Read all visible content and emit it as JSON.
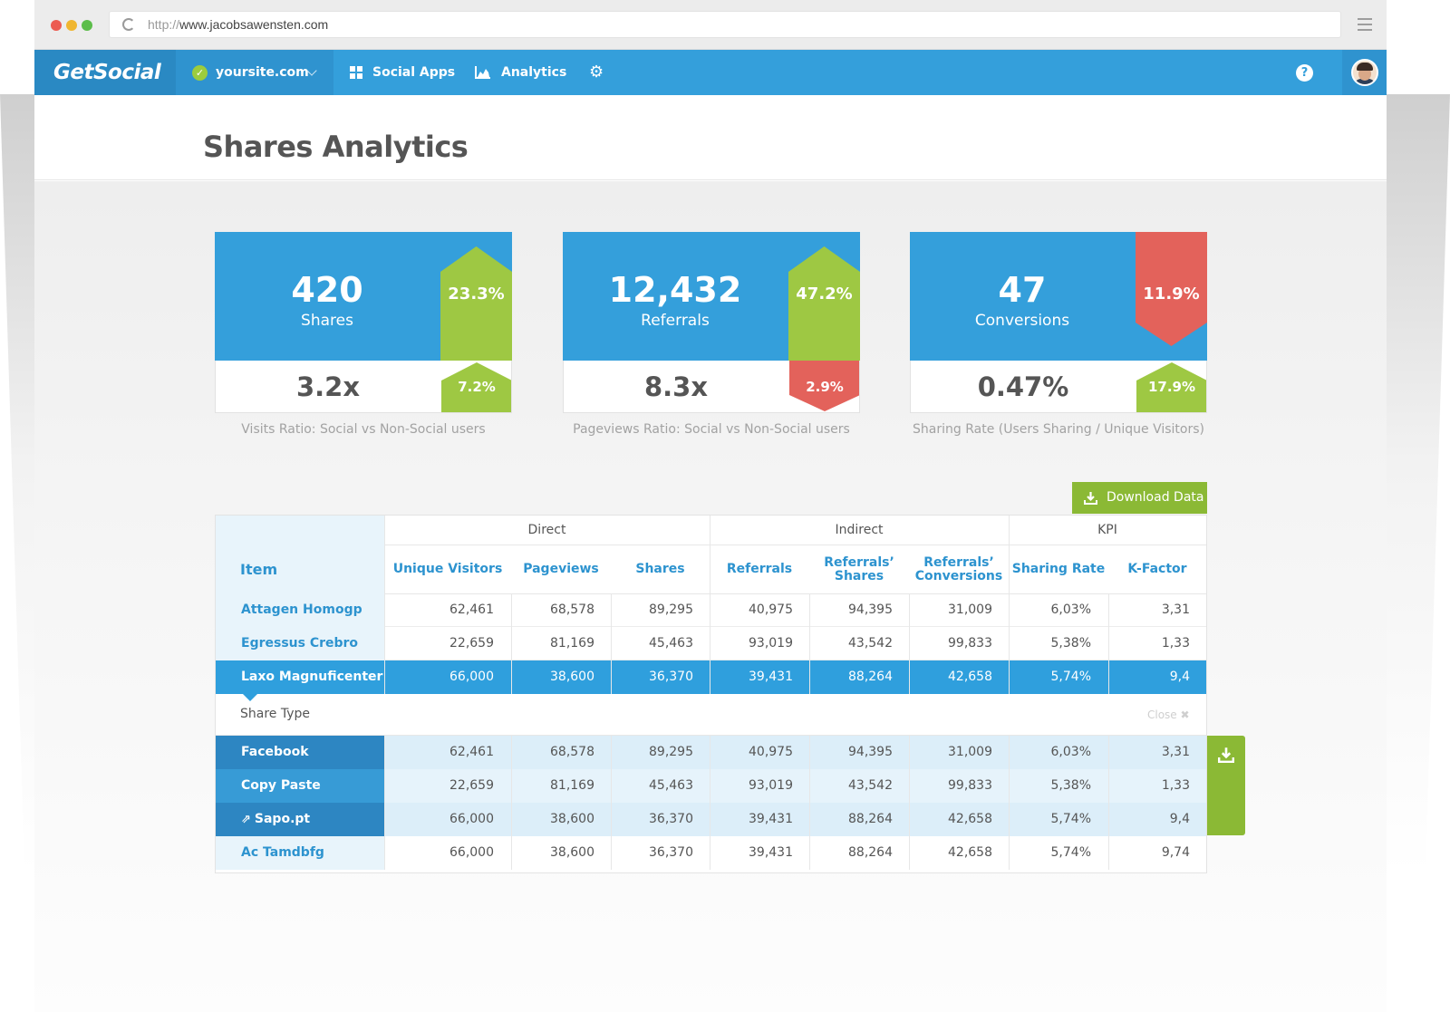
{
  "browser": {
    "url_protocol": "http://",
    "url_host": "www.jacobsawensten.com"
  },
  "navbar": {
    "logo": "GetSocial",
    "site": "yoursite.com",
    "social_apps": "Social Apps",
    "analytics": "Analytics"
  },
  "page": {
    "title": "Shares Analytics"
  },
  "cards": [
    {
      "value": "420",
      "label": "Shares",
      "badge": "23.3%",
      "badge_trend": "up",
      "ratio": "3.2x",
      "ratio_badge": "7.2%",
      "ratio_trend": "up",
      "caption": "Visits Ratio: Social vs Non-Social users"
    },
    {
      "value": "12,432",
      "label": "Referrals",
      "badge": "47.2%",
      "badge_trend": "up",
      "ratio": "8.3x",
      "ratio_badge": "2.9%",
      "ratio_trend": "down",
      "caption": "Pageviews Ratio: Social vs Non-Social users"
    },
    {
      "value": "47",
      "label": "Conversions",
      "badge": "11.9%",
      "badge_trend": "down",
      "ratio": "0.47%",
      "ratio_badge": "17.9%",
      "ratio_trend": "up",
      "caption": "Sharing Rate (Users Sharing / Unique Visitors)"
    }
  ],
  "colors": {
    "primary": "#349fdb",
    "up": "#9ec843",
    "down": "#e3625b",
    "download": "#8bb935"
  },
  "download_label": "Download Data",
  "table": {
    "groups": [
      "Direct",
      "Indirect",
      "KPI"
    ],
    "item_header": "Item",
    "columns": [
      "Unique Visitors",
      "Pageviews",
      "Shares",
      "Referrals",
      "Referrals’ Shares",
      "Referrals’ Conversions",
      "Sharing Rate",
      "K-Factor"
    ],
    "rows": [
      {
        "item": "Attagen Homogp",
        "suffix": "(...)",
        "values": [
          "62,461",
          "68,578",
          "89,295",
          "40,975",
          "94,395",
          "31,009",
          "6,03%",
          "3,31"
        ]
      },
      {
        "item": "Egressus Crebro",
        "values": [
          "22,659",
          "81,169",
          "45,463",
          "93,019",
          "43,542",
          "99,833",
          "5,38%",
          "1,33"
        ]
      },
      {
        "item": "Laxo Magnuficenter",
        "values": [
          "66,000",
          "38,600",
          "36,370",
          "39,431",
          "88,264",
          "42,658",
          "5,74%",
          "9,4"
        ]
      }
    ],
    "share_type_label": "Share Type",
    "close_label": "Close",
    "sub_rows": [
      {
        "item": "Facebook",
        "values": [
          "62,461",
          "68,578",
          "89,295",
          "40,975",
          "94,395",
          "31,009",
          "6,03%",
          "3,31"
        ]
      },
      {
        "item": "Copy Paste",
        "values": [
          "22,659",
          "81,169",
          "45,463",
          "93,019",
          "43,542",
          "99,833",
          "5,38%",
          "1,33"
        ]
      },
      {
        "item": "Sapo.pt",
        "values": [
          "66,000",
          "38,600",
          "36,370",
          "39,431",
          "88,264",
          "42,658",
          "5,74%",
          "9,4"
        ]
      }
    ],
    "last_row": {
      "item": "Ac Tamdbfg",
      "values": [
        "66,000",
        "38,600",
        "36,370",
        "39,431",
        "88,264",
        "42,658",
        "5,74%",
        "9,74"
      ]
    }
  }
}
